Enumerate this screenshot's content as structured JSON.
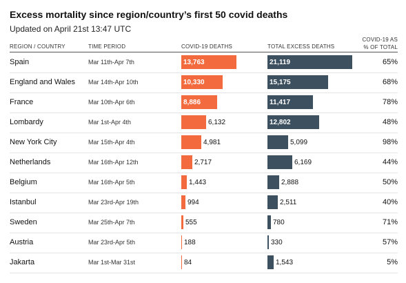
{
  "title": "Excess mortality since region/country’s first 50 covid deaths",
  "subtitle": "Updated on April 21st 13:47 UTC",
  "headers": {
    "region": "REGION / COUNTRY",
    "period": "TIME PERIOD",
    "covid": "COVID-19 DEATHS",
    "excess": "TOTAL EXCESS DEATHS",
    "pct_line1": "COVID-19 AS",
    "pct_line2": "% OF TOTAL"
  },
  "colors": {
    "covid": "#f26a3d",
    "excess": "#3c5060"
  },
  "chart_data": {
    "type": "bar",
    "title": "Excess mortality since region/country’s first 50 covid deaths",
    "subtitle": "Updated on April 21st 13:47 UTC",
    "categories": [
      "Spain",
      "England and Wales",
      "France",
      "Lombardy",
      "New York City",
      "Netherlands",
      "Belgium",
      "Istanbul",
      "Sweden",
      "Austria",
      "Jakarta"
    ],
    "time_periods": [
      "Mar 11th-Apr 7th",
      "Mar 14th-Apr 10th",
      "Mar 10th-Apr 6th",
      "Mar 1st-Apr 4th",
      "Mar 15th-Apr 4th",
      "Mar 16th-Apr 12th",
      "Mar 16th-Apr 5th",
      "Mar 23rd-Apr 19th",
      "Mar 25th-Apr 7th",
      "Mar 23rd-Apr 5th",
      "Mar 1st-Mar 31st"
    ],
    "series": [
      {
        "name": "COVID-19 DEATHS",
        "values": [
          13763,
          10330,
          8886,
          6132,
          4981,
          2717,
          1443,
          994,
          555,
          188,
          84
        ]
      },
      {
        "name": "TOTAL EXCESS DEATHS",
        "values": [
          21119,
          15175,
          11417,
          12802,
          5099,
          6169,
          2888,
          2511,
          780,
          330,
          1543
        ]
      }
    ],
    "labels": {
      "covid": [
        "13,763",
        "10,330",
        "8,886",
        "6,132",
        "4,981",
        "2,717",
        "1,443",
        "994",
        "555",
        "188",
        "84"
      ],
      "excess": [
        "21,119",
        "15,175",
        "11,417",
        "12,802",
        "5,099",
        "6,169",
        "2,888",
        "2,511",
        "780",
        "330",
        "1,543"
      ]
    },
    "percent_of_total": [
      "65%",
      "68%",
      "78%",
      "48%",
      "98%",
      "44%",
      "50%",
      "40%",
      "71%",
      "57%",
      "5%"
    ],
    "xlim": [
      0,
      21119
    ]
  }
}
